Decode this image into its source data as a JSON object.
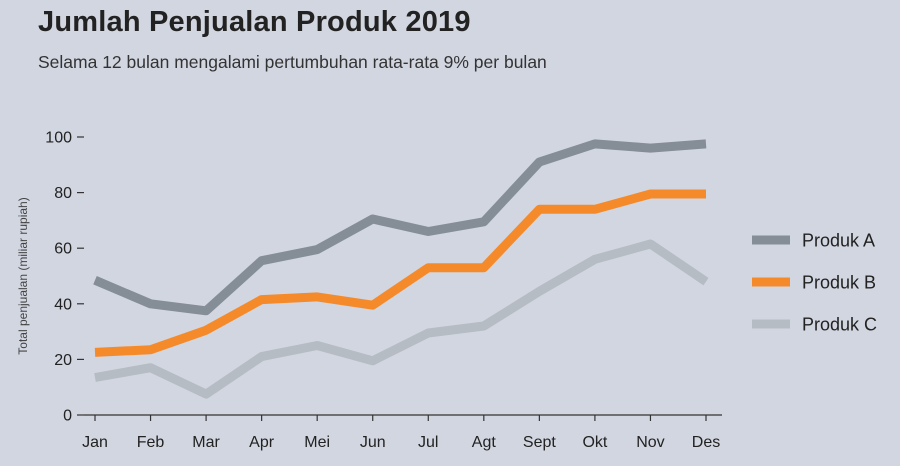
{
  "chart_data": {
    "type": "line",
    "title": "Jumlah Penjualan Produk 2019",
    "subtitle": "Selama 12 bulan mengalami pertumbuhan rata-rata 9% per bulan",
    "ylabel": "Total penjualan (miliar rupiah)",
    "xlabel": "",
    "ylim": [
      0,
      100
    ],
    "yticks": [
      0,
      20,
      40,
      60,
      80,
      100
    ],
    "categories": [
      "Jan",
      "Feb",
      "Mar",
      "Apr",
      "Mei",
      "Jun",
      "Jul",
      "Agt",
      "Sept",
      "Okt",
      "Nov",
      "Des"
    ],
    "grid": false,
    "legend_position": "right",
    "series": [
      {
        "name": "Produk A",
        "color": "#858d96",
        "values": [
          48.5,
          40,
          37.5,
          55.5,
          59.5,
          70.5,
          66,
          69.5,
          91,
          97.5,
          96,
          97.5
        ]
      },
      {
        "name": "Produk B",
        "color": "#f58a2b",
        "values": [
          22.5,
          23.5,
          30.5,
          41.5,
          42.5,
          39.5,
          53,
          53,
          74,
          74,
          79.5,
          79.5
        ]
      },
      {
        "name": "Produk C",
        "color": "#b6bcc3",
        "values": [
          13.5,
          17,
          7.5,
          21,
          25,
          19.5,
          29.5,
          32,
          44.5,
          56,
          61.5,
          48
        ]
      }
    ]
  }
}
